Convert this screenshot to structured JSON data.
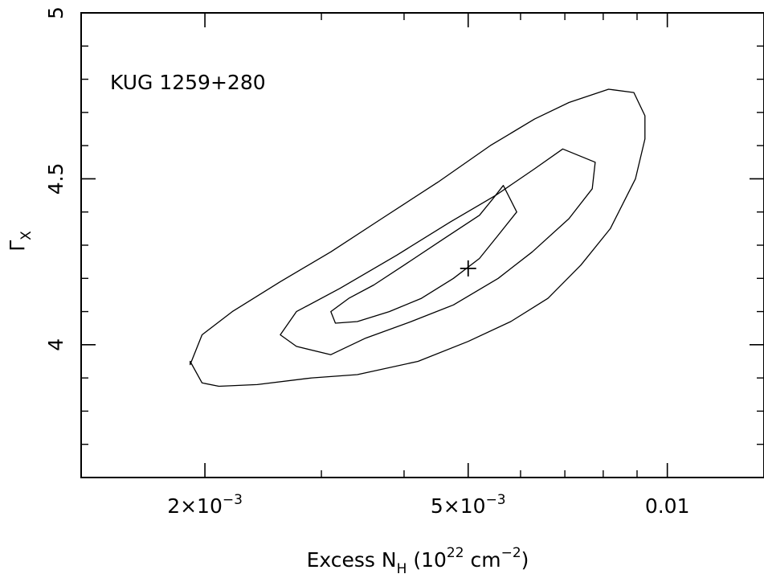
{
  "chart_data": {
    "type": "contour",
    "annotation": "KUG 1259+280",
    "xlabel": {
      "main": "Excess N",
      "sub": "H",
      "paren_open": " (10",
      "sup": "22",
      "unit": " cm",
      "unit_sup": "−2",
      "paren_close": ")"
    },
    "ylabel": {
      "main": "Γ",
      "sub": "X"
    },
    "x_scale": "log",
    "xlim": [
      0.0013,
      0.014
    ],
    "ylim": [
      3.6,
      5.0
    ],
    "x_tick_labels": [
      {
        "value": 0.002,
        "text": "2×10",
        "sup": "−3"
      },
      {
        "value": 0.005,
        "text": "5×10",
        "sup": "−3"
      },
      {
        "value": 0.01,
        "text": "0.01",
        "sup": ""
      }
    ],
    "y_tick_labels": [
      {
        "value": 4.0,
        "text": "4"
      },
      {
        "value": 4.5,
        "text": "4.5"
      },
      {
        "value": 5.0,
        "text": "5"
      }
    ],
    "x_major_ticks": [
      0.002,
      0.005,
      0.01
    ],
    "x_minor_ticks": [
      0.003,
      0.004,
      0.006,
      0.007,
      0.008,
      0.009
    ],
    "y_major_ticks": [
      4.0,
      4.5,
      5.0
    ],
    "y_minor_ticks": [
      3.7,
      3.8,
      3.9,
      4.1,
      4.2,
      4.3,
      4.4,
      4.6,
      4.7,
      4.8,
      4.9
    ],
    "best_fit": {
      "x": 0.005,
      "y": 4.23
    },
    "contours": [
      {
        "level": "inner",
        "points": [
          [
            0.00565,
            4.48
          ],
          [
            0.00592,
            4.4
          ],
          [
            0.00555,
            4.33
          ],
          [
            0.0052,
            4.26
          ],
          [
            0.00475,
            4.2
          ],
          [
            0.00425,
            4.14
          ],
          [
            0.0038,
            4.1
          ],
          [
            0.0034,
            4.07
          ],
          [
            0.00315,
            4.065
          ],
          [
            0.0031,
            4.1
          ],
          [
            0.0033,
            4.14
          ],
          [
            0.0036,
            4.18
          ],
          [
            0.004,
            4.24
          ],
          [
            0.0046,
            4.32
          ],
          [
            0.0052,
            4.39
          ],
          [
            0.00545,
            4.44
          ],
          [
            0.00565,
            4.48
          ]
        ]
      },
      {
        "level": "middle",
        "points": [
          [
            0.00695,
            4.59
          ],
          [
            0.00778,
            4.55
          ],
          [
            0.0077,
            4.47
          ],
          [
            0.0071,
            4.38
          ],
          [
            0.00625,
            4.28
          ],
          [
            0.00555,
            4.2
          ],
          [
            0.00475,
            4.12
          ],
          [
            0.0041,
            4.07
          ],
          [
            0.0035,
            4.02
          ],
          [
            0.0031,
            3.97
          ],
          [
            0.00275,
            3.995
          ],
          [
            0.0026,
            4.03
          ],
          [
            0.00275,
            4.1
          ],
          [
            0.0032,
            4.17
          ],
          [
            0.0039,
            4.27
          ],
          [
            0.0047,
            4.37
          ],
          [
            0.0055,
            4.45
          ],
          [
            0.0063,
            4.53
          ],
          [
            0.00695,
            4.59
          ]
        ]
      },
      {
        "level": "outer",
        "points": [
          [
            0.00815,
            4.77
          ],
          [
            0.0089,
            4.76
          ],
          [
            0.00925,
            4.69
          ],
          [
            0.00925,
            4.62
          ],
          [
            0.00895,
            4.5
          ],
          [
            0.0082,
            4.35
          ],
          [
            0.0074,
            4.24
          ],
          [
            0.0066,
            4.14
          ],
          [
            0.0058,
            4.07
          ],
          [
            0.005,
            4.01
          ],
          [
            0.0042,
            3.95
          ],
          [
            0.0034,
            3.91
          ],
          [
            0.0029,
            3.9
          ],
          [
            0.0024,
            3.88
          ],
          [
            0.0021,
            3.875
          ],
          [
            0.00198,
            3.885
          ],
          [
            0.0019,
            3.95
          ],
          [
            0.0019,
            3.94
          ],
          [
            0.00198,
            4.03
          ],
          [
            0.0022,
            4.1
          ],
          [
            0.0026,
            4.19
          ],
          [
            0.0031,
            4.28
          ],
          [
            0.0037,
            4.38
          ],
          [
            0.0045,
            4.49
          ],
          [
            0.0054,
            4.6
          ],
          [
            0.0063,
            4.68
          ],
          [
            0.0071,
            4.73
          ],
          [
            0.00815,
            4.77
          ]
        ]
      }
    ]
  }
}
